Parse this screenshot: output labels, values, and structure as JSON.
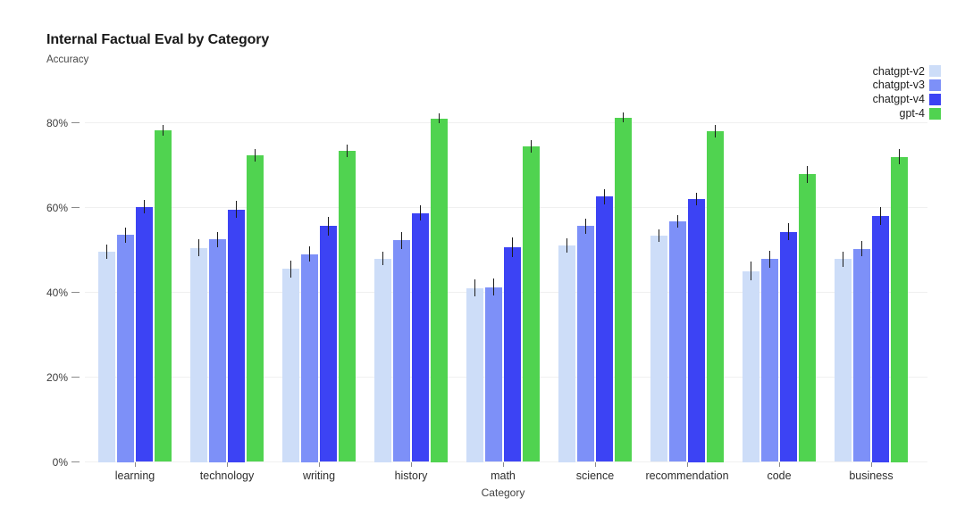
{
  "header": {
    "title": "Internal Factual Eval by Category",
    "subtitle": "Accuracy"
  },
  "chart_data": {
    "type": "bar",
    "title": "Internal Factual Eval by Category",
    "ylabel": "Accuracy",
    "xlabel": "Category",
    "ylim": [
      0,
      85
    ],
    "yticks": [
      0,
      20,
      40,
      60,
      80
    ],
    "ytick_suffix": "%",
    "grid": "horizontal",
    "legend_position": "top-right",
    "error_bars": true,
    "error_bar_color": "#1c1c1c",
    "gridline_color": "#f0f0f0",
    "categories": [
      "learning",
      "technology",
      "writing",
      "history",
      "math",
      "science",
      "recommendation",
      "code",
      "business"
    ],
    "series": [
      {
        "name": "chatgpt-v2",
        "color": "#cdddf8",
        "values": [
          49.5,
          50.5,
          45.5,
          48.0,
          41.0,
          51.0,
          53.4,
          45.0,
          47.8
        ],
        "errors": [
          1.7,
          2.0,
          2.0,
          1.5,
          2.0,
          1.7,
          1.5,
          2.2,
          1.8
        ]
      },
      {
        "name": "chatgpt-v3",
        "color": "#7d90f8",
        "values": [
          53.5,
          52.5,
          49.0,
          52.3,
          41.2,
          55.6,
          56.8,
          47.8,
          50.3
        ],
        "errors": [
          1.8,
          1.8,
          1.8,
          2.0,
          2.0,
          1.8,
          1.5,
          2.0,
          1.8
        ]
      },
      {
        "name": "chatgpt-v4",
        "color": "#3c43f4",
        "values": [
          60.2,
          59.5,
          55.6,
          58.7,
          50.6,
          62.6,
          62.0,
          54.3,
          58.0
        ],
        "errors": [
          1.5,
          2.0,
          2.2,
          1.8,
          2.3,
          1.8,
          1.5,
          2.0,
          2.2
        ]
      },
      {
        "name": "gpt-4",
        "color": "#50d350",
        "values": [
          78.2,
          72.3,
          73.4,
          81.0,
          74.4,
          81.2,
          78.0,
          67.8,
          72.0
        ],
        "errors": [
          1.2,
          1.5,
          1.5,
          1.2,
          1.5,
          1.2,
          1.5,
          2.0,
          1.8
        ]
      }
    ]
  }
}
